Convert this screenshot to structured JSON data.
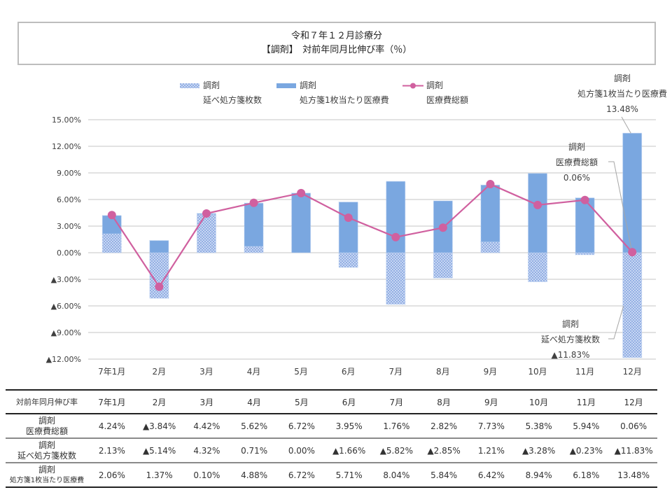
{
  "title": {
    "line1": "令和７年１２月診療分",
    "line2": "【調剤】　対前年同月比伸び率（％）"
  },
  "legend": [
    {
      "line1": "調剤",
      "line2": "延べ処方箋枚数",
      "style": "hatched"
    },
    {
      "line1": "調剤",
      "line2": "処方箋1枚当たり医療費",
      "style": "solid"
    },
    {
      "line1": "調剤",
      "line2": "医療費総額",
      "style": "line-marker"
    }
  ],
  "annotations": [
    {
      "series": "処方箋1枚当たり医療費",
      "lines": [
        "調剤",
        "処方箋1枚当たり医療費",
        "13.48%"
      ]
    },
    {
      "series": "医療費総額",
      "lines": [
        "調剤",
        "医療費総額",
        "0.06%"
      ]
    },
    {
      "series": "延べ処方箋枚数",
      "lines": [
        "調剤",
        "延べ処方箋枚数",
        "▲11.83%"
      ]
    }
  ],
  "colors": {
    "solid_bar": "#7aa7e0",
    "hatch_dark": "#93afe3",
    "hatch_light": "#c8d7f3",
    "line": "#d0609f",
    "grid": "#d9d9d9"
  },
  "chart_data": {
    "type": "bar",
    "subtype": "stacked-bar-with-line",
    "title": "令和７年１２月診療分 【調剤】 対前年同月比伸び率（％）",
    "xlabel": "",
    "ylabel": "",
    "categories": [
      "7年1月",
      "2月",
      "3月",
      "4月",
      "5月",
      "6月",
      "7月",
      "8月",
      "9月",
      "10月",
      "11月",
      "12月"
    ],
    "ylim": [
      -12,
      15
    ],
    "yticks": [
      15,
      12,
      9,
      6,
      3,
      0,
      -3,
      -6,
      -9,
      -12
    ],
    "ytick_labels": [
      "15.00%",
      "12.00%",
      "9.00%",
      "6.00%",
      "3.00%",
      "0.00%",
      "▲3.00%",
      "▲6.00%",
      "▲9.00%",
      "▲12.00%"
    ],
    "grid": true,
    "legend_position": "top",
    "series": [
      {
        "name": "調剤 延べ処方箋枚数",
        "kind": "bar-stacked",
        "style": "hatched",
        "values": [
          2.13,
          -5.14,
          4.32,
          0.71,
          0.0,
          -1.66,
          -5.82,
          -2.85,
          1.21,
          -3.28,
          -0.23,
          -11.83
        ]
      },
      {
        "name": "調剤 処方箋1枚当たり医療費",
        "kind": "bar-stacked",
        "style": "solid",
        "values": [
          2.06,
          1.37,
          0.1,
          4.88,
          6.72,
          5.71,
          8.04,
          5.84,
          6.42,
          8.94,
          6.18,
          13.48
        ]
      },
      {
        "name": "調剤 医療費総額",
        "kind": "line",
        "style": "line-marker",
        "values": [
          4.24,
          -3.84,
          4.42,
          5.62,
          6.72,
          3.95,
          1.76,
          2.82,
          7.73,
          5.38,
          5.94,
          0.06
        ]
      }
    ]
  },
  "table": {
    "header_label": "対前年同月伸び率",
    "columns": [
      "7年1月",
      "2月",
      "3月",
      "4月",
      "5月",
      "6月",
      "7月",
      "8月",
      "9月",
      "10月",
      "11月",
      "12月"
    ],
    "rows": [
      {
        "label": [
          "調剤",
          "医療費総額"
        ],
        "small_second": false,
        "values": [
          "4.24%",
          "▲3.84%",
          "4.42%",
          "5.62%",
          "6.72%",
          "3.95%",
          "1.76%",
          "2.82%",
          "7.73%",
          "5.38%",
          "5.94%",
          "0.06%"
        ]
      },
      {
        "label": [
          "調剤",
          "延べ処方箋枚数"
        ],
        "small_second": false,
        "values": [
          "2.13%",
          "▲5.14%",
          "4.32%",
          "0.71%",
          "0.00%",
          "▲1.66%",
          "▲5.82%",
          "▲2.85%",
          "1.21%",
          "▲3.28%",
          "▲0.23%",
          "▲11.83%"
        ]
      },
      {
        "label": [
          "調剤",
          "処方箋1枚当たり医療費"
        ],
        "small_second": true,
        "values": [
          "2.06%",
          "1.37%",
          "0.10%",
          "4.88%",
          "6.72%",
          "5.71%",
          "8.04%",
          "5.84%",
          "6.42%",
          "8.94%",
          "6.18%",
          "13.48%"
        ]
      }
    ]
  }
}
